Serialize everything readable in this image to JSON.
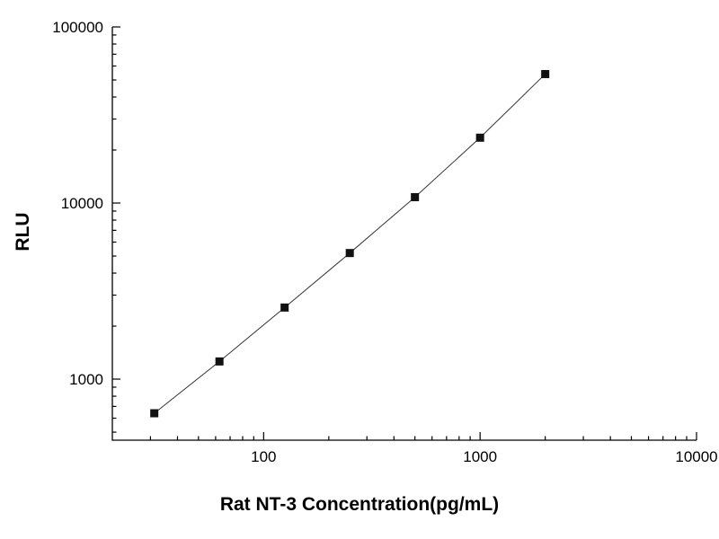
{
  "chart_data": {
    "type": "scatter",
    "title": "",
    "xlabel": "Rat NT-3 Concentration(pg/mL)",
    "ylabel": "RLU",
    "x_scale": "log",
    "y_scale": "log",
    "xlim": [
      20,
      10000
    ],
    "ylim": [
      450,
      100000
    ],
    "x": [
      31.25,
      62.5,
      125,
      250,
      500,
      1000,
      2000
    ],
    "y": [
      640,
      1260,
      2550,
      5200,
      10800,
      23500,
      54000
    ],
    "x_major_ticks": [
      100,
      1000,
      10000
    ],
    "x_tick_labels": [
      "100",
      "1000",
      "10000"
    ],
    "y_major_ticks": [
      1000,
      10000,
      100000
    ],
    "y_tick_labels": [
      "1000",
      "10000",
      "100000"
    ],
    "grid": false,
    "legend": "none",
    "marker": {
      "shape": "square",
      "color": "#111111",
      "size": 9
    },
    "line": {
      "color": "#333333",
      "width": 1
    },
    "axis_color": "#000000",
    "background_color": "#ffffff"
  }
}
